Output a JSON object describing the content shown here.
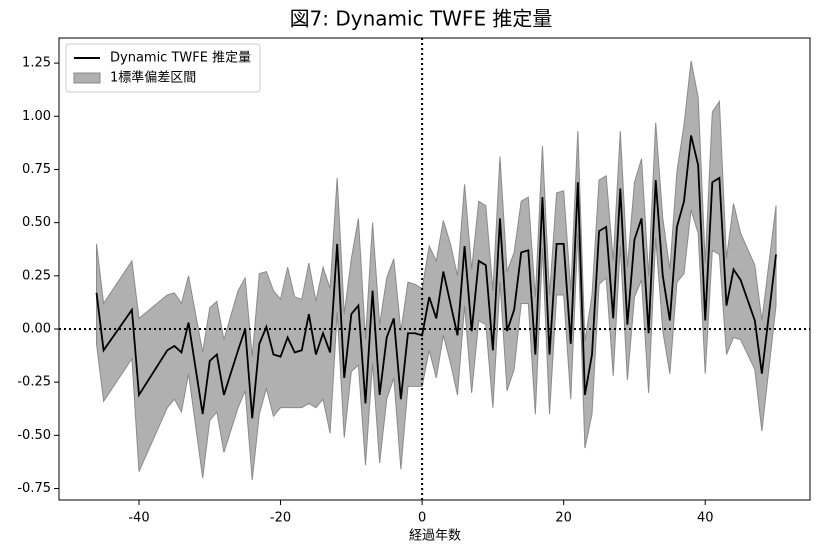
{
  "chart_data": {
    "type": "line_band",
    "title": "図7: Dynamic TWFE 推定量",
    "xlabel": "経過年数",
    "x": [
      -46,
      -45,
      -41,
      -40,
      -36,
      -35,
      -34,
      -33,
      -31,
      -30,
      -29,
      -28,
      -26,
      -25,
      -24,
      -23,
      -22,
      -21,
      -20,
      -19,
      -18,
      -17,
      -16,
      -15,
      -14,
      -13,
      -12,
      -11,
      -10,
      -9,
      -8,
      -7,
      -6,
      -5,
      -4,
      -3,
      -2,
      -1,
      0,
      1,
      2,
      3,
      4,
      5,
      6,
      7,
      8,
      9,
      10,
      11,
      12,
      13,
      14,
      15,
      16,
      17,
      18,
      19,
      20,
      21,
      22,
      23,
      24,
      25,
      26,
      27,
      28,
      29,
      30,
      31,
      32,
      33,
      34,
      35,
      36,
      37,
      38,
      39,
      40,
      41,
      42,
      43,
      44,
      45,
      47,
      48,
      50
    ],
    "series": [
      {
        "name": "Dynamic TWFE 推定量",
        "color": "#000000",
        "values": [
          0.17,
          -0.1,
          0.09,
          -0.31,
          -0.1,
          -0.08,
          -0.11,
          0.03,
          -0.4,
          -0.15,
          -0.12,
          -0.31,
          -0.1,
          0.0,
          -0.42,
          -0.07,
          0.01,
          -0.12,
          -0.13,
          -0.04,
          -0.11,
          -0.1,
          0.07,
          -0.12,
          -0.02,
          -0.11,
          0.4,
          -0.23,
          0.07,
          0.11,
          -0.35,
          0.18,
          -0.31,
          -0.04,
          0.05,
          -0.33,
          -0.02,
          -0.02,
          -0.03,
          0.15,
          0.05,
          0.27,
          0.12,
          -0.03,
          0.39,
          -0.01,
          0.32,
          0.3,
          -0.1,
          0.52,
          -0.01,
          0.09,
          0.36,
          0.37,
          -0.12,
          0.62,
          -0.12,
          0.4,
          0.4,
          -0.07,
          0.69,
          -0.31,
          -0.12,
          0.46,
          0.48,
          0.05,
          0.66,
          0.02,
          0.42,
          0.52,
          -0.02,
          0.7,
          0.25,
          0.04,
          0.48,
          0.6,
          0.91,
          0.77,
          0.04,
          0.69,
          0.71,
          0.11,
          0.28,
          0.23,
          0.04,
          -0.21,
          0.35
        ]
      }
    ],
    "band": {
      "name": "1標準偏差区間",
      "color": "#b0b0b0",
      "edgecolor": "#8a8a8a",
      "lower": [
        -0.07,
        -0.34,
        -0.14,
        -0.67,
        -0.37,
        -0.33,
        -0.39,
        -0.21,
        -0.7,
        -0.43,
        -0.39,
        -0.58,
        -0.37,
        -0.29,
        -0.71,
        -0.4,
        -0.28,
        -0.41,
        -0.37,
        -0.37,
        -0.37,
        -0.37,
        -0.35,
        -0.37,
        -0.33,
        -0.49,
        0.08,
        -0.51,
        -0.2,
        -0.17,
        -0.64,
        -0.16,
        -0.63,
        -0.33,
        -0.23,
        -0.66,
        -0.27,
        -0.27,
        -0.27,
        -0.1,
        -0.23,
        -0.03,
        -0.16,
        -0.31,
        0.11,
        -0.3,
        0.04,
        0.02,
        -0.37,
        0.22,
        -0.29,
        -0.19,
        0.12,
        0.12,
        -0.4,
        0.38,
        -0.4,
        0.16,
        0.16,
        -0.33,
        0.45,
        -0.56,
        -0.4,
        0.21,
        0.24,
        -0.22,
        0.39,
        -0.24,
        0.15,
        0.23,
        -0.3,
        0.43,
        -0.01,
        -0.21,
        0.22,
        0.26,
        0.56,
        0.45,
        -0.21,
        0.37,
        0.35,
        -0.12,
        -0.04,
        -0.05,
        -0.19,
        -0.48,
        0.11
      ],
      "upper": [
        0.4,
        0.12,
        0.32,
        0.05,
        0.16,
        0.17,
        0.12,
        0.25,
        -0.11,
        0.1,
        0.13,
        -0.05,
        0.18,
        0.24,
        -0.13,
        0.26,
        0.27,
        0.18,
        0.14,
        0.29,
        0.15,
        0.14,
        0.31,
        0.13,
        0.29,
        0.19,
        0.71,
        0.07,
        0.33,
        0.52,
        -0.05,
        0.5,
        0.02,
        0.24,
        0.33,
        -0.01,
        0.22,
        0.21,
        0.19,
        0.39,
        0.32,
        0.51,
        0.4,
        0.25,
        0.68,
        0.28,
        0.6,
        0.58,
        0.18,
        0.81,
        0.27,
        0.36,
        0.6,
        0.62,
        0.15,
        0.86,
        0.16,
        0.64,
        0.65,
        0.18,
        0.93,
        -0.06,
        0.16,
        0.7,
        0.72,
        0.32,
        0.93,
        0.29,
        0.69,
        0.8,
        0.25,
        0.97,
        0.52,
        0.28,
        0.74,
        0.96,
        1.26,
        1.09,
        0.31,
        1.02,
        1.07,
        0.33,
        0.59,
        0.45,
        0.3,
        0.04,
        0.58
      ]
    },
    "xlim": [
      -51.3,
      54.8
    ],
    "ylim": [
      -0.804,
      1.368
    ],
    "xticks": [
      -40,
      -20,
      0,
      20,
      40
    ],
    "yticks": [
      {
        "value": -0.75,
        "label": "-0.75"
      },
      {
        "value": -0.5,
        "label": "-0.50"
      },
      {
        "value": -0.25,
        "label": "-0.25"
      },
      {
        "value": 0,
        "label": "0.00"
      },
      {
        "value": 0.25,
        "label": "0.25"
      },
      {
        "value": 0.5,
        "label": "0.50"
      },
      {
        "value": 0.75,
        "label": "0.75"
      },
      {
        "value": 1,
        "label": "1.00"
      },
      {
        "value": 1.25,
        "label": "1.25"
      }
    ],
    "hline": 0,
    "vline": 0,
    "legend": "upper left"
  }
}
